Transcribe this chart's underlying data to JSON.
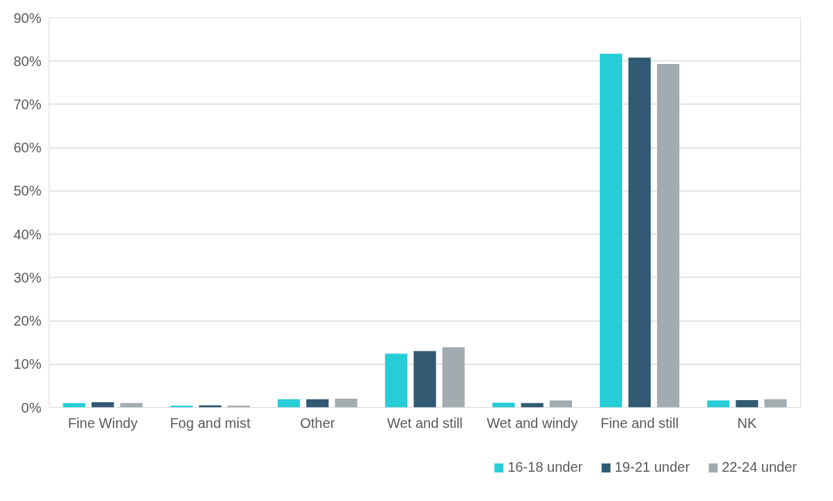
{
  "chart_data": {
    "type": "bar",
    "categories": [
      "Fine Windy",
      "Fog and mist",
      "Other",
      "Wet and still",
      "Wet and windy",
      "Fine and still",
      "NK"
    ],
    "series": [
      {
        "name": "16-18 under",
        "color": "#26cdd7",
        "values": [
          1.0,
          0.4,
          1.9,
          12.4,
          1.1,
          81.7,
          1.6
        ]
      },
      {
        "name": "19-21 under",
        "color": "#325a73",
        "values": [
          1.2,
          0.5,
          1.9,
          13.0,
          1.0,
          80.8,
          1.7
        ]
      },
      {
        "name": "22-24 under",
        "color": "#a2abb0",
        "values": [
          1.0,
          0.4,
          2.0,
          13.9,
          1.6,
          79.3,
          1.9
        ]
      }
    ],
    "ylim": [
      0,
      90
    ],
    "yticks": [
      {
        "value": 0,
        "label": "0%"
      },
      {
        "value": 10,
        "label": "10%"
      },
      {
        "value": 20,
        "label": "20%"
      },
      {
        "value": 30,
        "label": "30%"
      },
      {
        "value": 40,
        "label": "40%"
      },
      {
        "value": 50,
        "label": "50%"
      },
      {
        "value": 60,
        "label": "60%"
      },
      {
        "value": 70,
        "label": "70%"
      },
      {
        "value": 80,
        "label": "80%"
      },
      {
        "value": 90,
        "label": "90%"
      }
    ],
    "grid": "y",
    "legend": "bottom"
  }
}
